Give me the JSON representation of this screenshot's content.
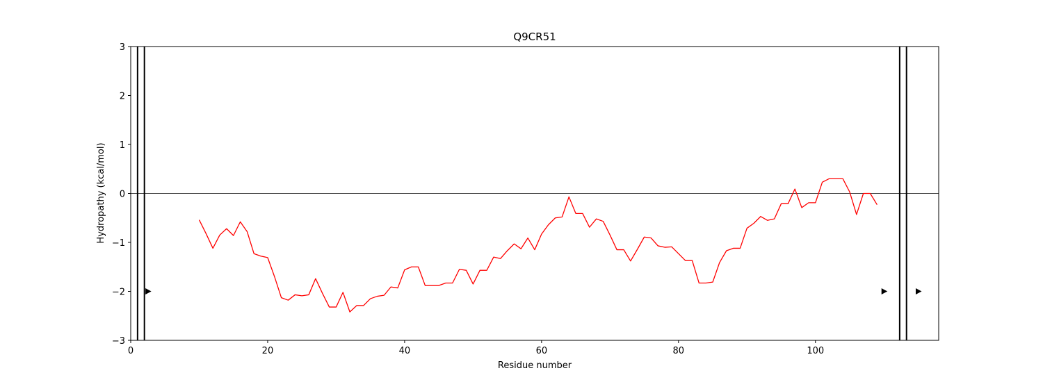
{
  "chart_data": {
    "type": "line",
    "title": "Q9CR51",
    "xlabel": "Residue number",
    "ylabel": "Hydropathy (kcal/mol)",
    "xlim": [
      0,
      118
    ],
    "ylim": [
      -3,
      3
    ],
    "xticks": [
      0,
      20,
      40,
      60,
      80,
      100
    ],
    "yticks": [
      -3,
      -2,
      -1,
      0,
      1,
      2,
      3
    ],
    "ytick_labels": [
      "−3",
      "−2",
      "−1",
      "0",
      "1",
      "2",
      "3"
    ],
    "zero_line": 0,
    "series": [
      {
        "name": "hydropathy",
        "color": "#ff0000",
        "x": [
          10,
          11,
          12,
          13,
          14,
          15,
          16,
          17,
          18,
          19,
          20,
          21,
          22,
          23,
          24,
          25,
          26,
          27,
          28,
          29,
          30,
          31,
          32,
          33,
          34,
          35,
          36,
          37,
          38,
          39,
          40,
          41,
          42,
          43,
          44,
          45,
          46,
          47,
          48,
          49,
          50,
          51,
          52,
          53,
          54,
          55,
          56,
          57,
          58,
          59,
          60,
          61,
          62,
          63,
          64,
          65,
          66,
          67,
          68,
          69,
          70,
          71,
          72,
          73,
          74,
          75,
          76,
          77,
          78,
          79,
          80,
          81,
          82,
          83,
          84,
          85,
          86,
          87,
          88,
          89,
          90,
          91,
          92,
          93,
          94,
          95,
          96,
          97,
          98,
          99,
          100,
          101,
          102,
          103,
          104,
          105,
          106,
          107,
          108,
          109
        ],
        "y": [
          -0.54,
          -0.82,
          -1.12,
          -0.85,
          -0.72,
          -0.86,
          -0.58,
          -0.78,
          -1.23,
          -1.28,
          -1.31,
          -1.7,
          -2.13,
          -2.18,
          -2.07,
          -2.09,
          -2.07,
          -1.74,
          -2.04,
          -2.32,
          -2.32,
          -2.02,
          -2.42,
          -2.29,
          -2.29,
          -2.15,
          -2.1,
          -2.08,
          -1.91,
          -1.93,
          -1.56,
          -1.5,
          -1.5,
          -1.88,
          -1.88,
          -1.88,
          -1.83,
          -1.83,
          -1.55,
          -1.57,
          -1.85,
          -1.57,
          -1.57,
          -1.3,
          -1.33,
          -1.17,
          -1.03,
          -1.13,
          -0.91,
          -1.15,
          -0.83,
          -0.64,
          -0.5,
          -0.48,
          -0.07,
          -0.41,
          -0.41,
          -0.69,
          -0.52,
          -0.57,
          -0.85,
          -1.15,
          -1.15,
          -1.38,
          -1.14,
          -0.89,
          -0.91,
          -1.07,
          -1.1,
          -1.09,
          -1.23,
          -1.37,
          -1.37,
          -1.83,
          -1.83,
          -1.81,
          -1.41,
          -1.17,
          -1.12,
          -1.12,
          -0.71,
          -0.61,
          -0.47,
          -0.55,
          -0.52,
          -0.21,
          -0.21,
          0.09,
          -0.29,
          -0.19,
          -0.19,
          0.23,
          0.3,
          0.3,
          0.3,
          0.03,
          -0.43,
          0.0,
          0.0,
          -0.23
        ]
      }
    ],
    "vertical_lines": [
      1,
      2,
      112.3,
      113.3
    ],
    "markers": [
      {
        "x": 2.5,
        "y": -2
      },
      {
        "x": 110,
        "y": -2
      },
      {
        "x": 115,
        "y": -2
      }
    ]
  }
}
